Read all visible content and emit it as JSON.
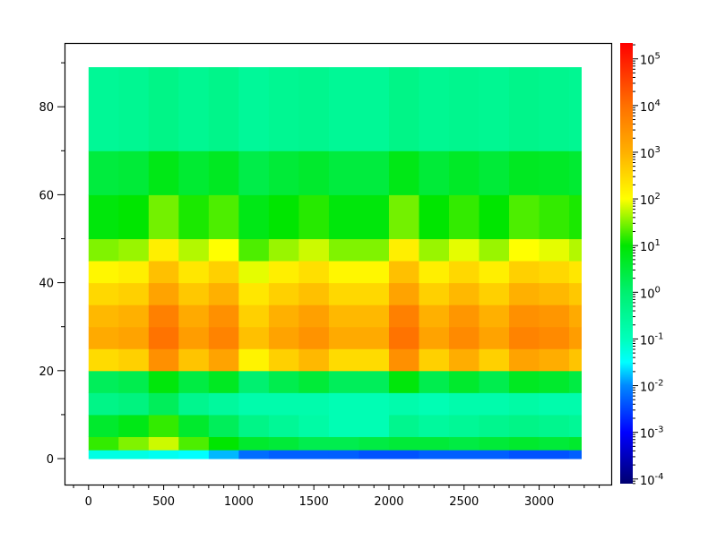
{
  "chart_data": {
    "type": "heatmap",
    "title": "",
    "xlabel": "",
    "ylabel": "",
    "xlim": [
      -160,
      3480
    ],
    "ylim": [
      -5.9,
      94.5
    ],
    "x_ticks": [
      0,
      500,
      1000,
      1500,
      2000,
      2500,
      3000
    ],
    "y_ticks": [
      0,
      20,
      40,
      60,
      80
    ],
    "grid": false,
    "x_edges": [
      0,
      200,
      400,
      600,
      800,
      1000,
      1200,
      1400,
      1600,
      1800,
      2000,
      2200,
      2400,
      2600,
      2800,
      3000,
      3200,
      3280
    ],
    "y_edges": [
      0,
      2,
      5,
      10,
      15,
      20,
      25,
      30,
      35,
      40,
      45,
      50,
      60,
      70,
      89
    ],
    "value_scale": "log10",
    "log10_values": [
      [
        -1.3,
        -1.3,
        -1.4,
        -1.5,
        -1.8,
        -2.2,
        -2.3,
        -2.3,
        -2.3,
        -2.4,
        -2.4,
        -2.3,
        -2.3,
        -2.3,
        -2.4,
        -2.4,
        -2.3
      ],
      [
        1.2,
        1.5,
        1.8,
        1.3,
        1.0,
        0.6,
        0.5,
        0.3,
        0.3,
        0.4,
        0.5,
        0.5,
        0.4,
        0.5,
        0.6,
        0.5,
        0.6
      ],
      [
        0.6,
        0.8,
        1.2,
        0.6,
        0.2,
        -0.3,
        -0.5,
        -0.7,
        -0.9,
        -0.9,
        -0.4,
        -0.6,
        -0.5,
        -0.4,
        -0.3,
        -0.4,
        -0.5
      ],
      [
        -0.3,
        -0.2,
        0.2,
        -0.4,
        -0.6,
        -0.8,
        -0.8,
        -0.8,
        -0.9,
        -0.9,
        -0.8,
        -0.9,
        -0.8,
        -0.8,
        -0.7,
        -0.8,
        -0.8
      ],
      [
        0.2,
        0.3,
        0.9,
        0.4,
        0.7,
        0.0,
        0.3,
        0.5,
        0.2,
        0.2,
        0.9,
        0.3,
        0.6,
        0.3,
        0.7,
        0.6,
        0.4
      ],
      [
        2.45,
        2.6,
        3.5,
        2.75,
        3.2,
        2.15,
        2.6,
        2.9,
        2.45,
        2.45,
        3.5,
        2.6,
        3.05,
        2.6,
        3.2,
        3.05,
        2.75
      ],
      [
        3.1,
        3.2,
        3.95,
        3.3,
        3.7,
        2.8,
        3.2,
        3.45,
        3.1,
        3.1,
        3.95,
        3.2,
        3.6,
        3.2,
        3.7,
        3.6,
        3.3
      ],
      [
        2.9,
        3.0,
        3.75,
        3.1,
        3.5,
        2.6,
        3.0,
        3.25,
        2.9,
        2.9,
        3.75,
        3.0,
        3.4,
        3.0,
        3.5,
        3.4,
        3.1
      ],
      [
        2.5,
        2.6,
        3.2,
        2.7,
        3.0,
        2.3,
        2.6,
        2.8,
        2.5,
        2.5,
        3.2,
        2.6,
        2.9,
        2.6,
        3.0,
        2.9,
        2.7
      ],
      [
        2.1,
        2.2,
        2.8,
        2.3,
        2.6,
        1.9,
        2.2,
        2.4,
        2.1,
        2.1,
        2.8,
        2.2,
        2.5,
        2.2,
        2.6,
        2.5,
        2.3
      ],
      [
        1.5,
        1.6,
        2.2,
        1.7,
        2.0,
        1.3,
        1.6,
        1.8,
        1.5,
        1.5,
        2.2,
        1.6,
        1.9,
        1.6,
        2.0,
        1.9,
        1.7
      ],
      [
        0.9,
        1.0,
        1.45,
        1.1,
        1.3,
        0.8,
        1.0,
        1.15,
        0.9,
        0.9,
        1.45,
        1.0,
        1.2,
        1.0,
        1.3,
        1.2,
        1.1
      ],
      [
        0.45,
        0.5,
        0.8,
        0.55,
        0.7,
        0.35,
        0.5,
        0.6,
        0.45,
        0.45,
        0.8,
        0.5,
        0.65,
        0.5,
        0.7,
        0.65,
        0.55
      ],
      [
        -0.5,
        -0.45,
        -0.3,
        -0.45,
        -0.35,
        -0.55,
        -0.45,
        -0.4,
        -0.5,
        -0.5,
        -0.3,
        -0.45,
        -0.4,
        -0.45,
        -0.35,
        -0.4,
        -0.45
      ]
    ],
    "colorbar": {
      "scale": "log",
      "range_log10": [
        -4.1,
        5.34
      ],
      "tick_exponents": [
        5,
        4,
        3,
        2,
        1,
        0,
        -1,
        -2,
        -3,
        -4
      ],
      "tick_base": "10",
      "colormap": [
        {
          "v": -4.1,
          "color": "#000070"
        },
        {
          "v": -3,
          "color": "#0000ff"
        },
        {
          "v": -2,
          "color": "#0088ff"
        },
        {
          "v": -1.5,
          "color": "#00ffff"
        },
        {
          "v": -1,
          "color": "#00ffbb"
        },
        {
          "v": 0,
          "color": "#00f070"
        },
        {
          "v": 1,
          "color": "#00e600"
        },
        {
          "v": 2,
          "color": "#ffff00"
        },
        {
          "v": 3,
          "color": "#ffb000"
        },
        {
          "v": 4,
          "color": "#ff7000"
        },
        {
          "v": 5.34,
          "color": "#ff0000"
        }
      ]
    }
  }
}
